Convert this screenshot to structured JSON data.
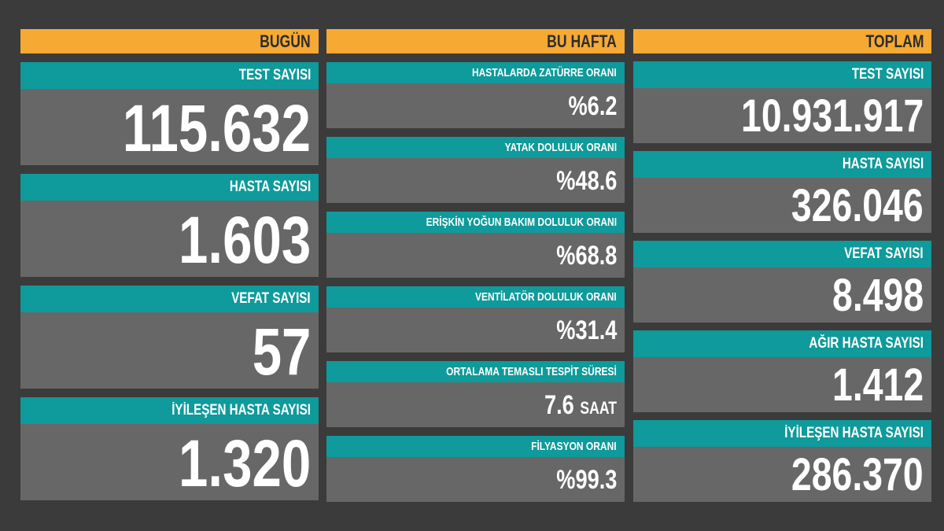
{
  "colors": {
    "header": "#f6a933",
    "label": "#0f9a9b",
    "value_bg": "#676767",
    "background": "#3b3b3b"
  },
  "today": {
    "title": "BUGÜN",
    "items": [
      {
        "label": "TEST SAYISI",
        "value": "115.632"
      },
      {
        "label": "HASTA SAYISI",
        "value": "1.603"
      },
      {
        "label": "VEFAT SAYISI",
        "value": "57"
      },
      {
        "label": "İYİLEŞEN HASTA SAYISI",
        "value": "1.320"
      }
    ]
  },
  "week": {
    "title": "BU HAFTA",
    "items": [
      {
        "label": "HASTALARDA ZATÜRRE ORANI",
        "value": "%6.2"
      },
      {
        "label": "YATAK DOLULUK ORANI",
        "value": "%48.6"
      },
      {
        "label": "ERİŞKİN YOĞUN BAKIM DOLULUK ORANI",
        "value": "%68.8"
      },
      {
        "label": "VENTİLATÖR DOLULUK ORANI",
        "value": "%31.4"
      },
      {
        "label": "ORTALAMA TEMASLI TESPİT SÜRESİ",
        "value": "7.6",
        "unit": "SAAT"
      },
      {
        "label": "FİLYASYON ORANI",
        "value": "%99.3"
      }
    ]
  },
  "total": {
    "title": "TOPLAM",
    "items": [
      {
        "label": "TEST SAYISI",
        "value": "10.931.917"
      },
      {
        "label": "HASTA SAYISI",
        "value": "326.046"
      },
      {
        "label": "VEFAT SAYISI",
        "value": "8.498"
      },
      {
        "label": "AĞIR HASTA SAYISI",
        "value": "1.412"
      },
      {
        "label": "İYİLEŞEN HASTA SAYISI",
        "value": "286.370"
      }
    ]
  }
}
